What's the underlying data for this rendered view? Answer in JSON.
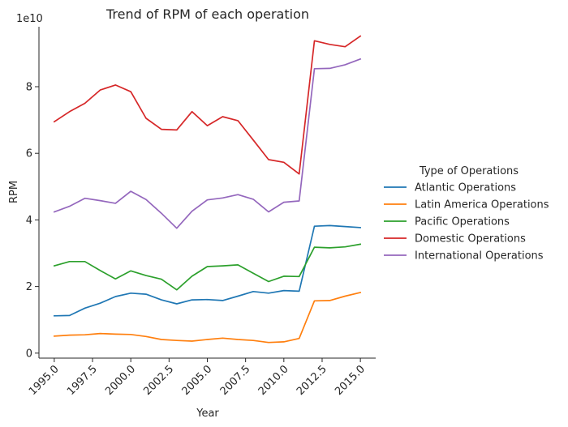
{
  "chart_data": {
    "type": "line",
    "title": "Trend of RPM of each operation",
    "xlabel": "Year",
    "ylabel": "RPM",
    "y_offset_label": "1e10",
    "x": [
      1995,
      1996,
      1997,
      1998,
      1999,
      2000,
      2001,
      2002,
      2003,
      2004,
      2005,
      2006,
      2007,
      2008,
      2009,
      2010,
      2011,
      2012,
      2013,
      2014,
      2015
    ],
    "xlim": [
      1994,
      2016
    ],
    "ylim": [
      -0.15,
      9.8
    ],
    "x_ticks": [
      1995.0,
      1997.5,
      2000.0,
      2002.5,
      2005.0,
      2007.5,
      2010.0,
      2012.5,
      2015.0
    ],
    "x_tick_labels": [
      "1995.0",
      "1997.5",
      "2000.0",
      "2002.5",
      "2005.0",
      "2007.5",
      "2010.0",
      "2012.5",
      "2015.0"
    ],
    "y_ticks": [
      0,
      2,
      4,
      6,
      8
    ],
    "y_tick_labels": [
      "0",
      "2",
      "4",
      "6",
      "8"
    ],
    "grid": false,
    "legend": {
      "title": "Type of Operations",
      "placement": "right-outside"
    },
    "series": [
      {
        "name": "Atlantic Operations",
        "color": "#1f77b4",
        "values": [
          1.12,
          1.13,
          1.35,
          1.5,
          1.7,
          1.8,
          1.77,
          1.6,
          1.48,
          1.6,
          1.61,
          1.58,
          1.71,
          1.85,
          1.8,
          1.88,
          1.86,
          3.81,
          3.83,
          3.8,
          3.77
        ]
      },
      {
        "name": "Latin America Operations",
        "color": "#ff7f0e",
        "values": [
          0.51,
          0.54,
          0.55,
          0.59,
          0.57,
          0.56,
          0.5,
          0.41,
          0.38,
          0.36,
          0.41,
          0.45,
          0.41,
          0.38,
          0.32,
          0.34,
          0.44,
          1.57,
          1.58,
          1.71,
          1.82
        ]
      },
      {
        "name": "Pacific Operations",
        "color": "#2ca02c",
        "values": [
          2.62,
          2.75,
          2.75,
          2.48,
          2.23,
          2.47,
          2.33,
          2.22,
          1.9,
          2.31,
          2.6,
          2.62,
          2.65,
          2.4,
          2.15,
          2.31,
          2.3,
          3.18,
          3.16,
          3.19,
          3.27
        ]
      },
      {
        "name": "Domestic Operations",
        "color": "#d62728",
        "values": [
          6.95,
          7.25,
          7.5,
          7.9,
          8.05,
          7.85,
          7.05,
          6.72,
          6.7,
          7.25,
          6.83,
          7.1,
          6.98,
          6.4,
          5.81,
          5.73,
          5.38,
          9.38,
          9.27,
          9.2,
          9.52
        ]
      },
      {
        "name": "International Operations",
        "color": "#9467bd",
        "values": [
          4.24,
          4.41,
          4.65,
          4.58,
          4.5,
          4.86,
          4.61,
          4.2,
          3.75,
          4.26,
          4.6,
          4.66,
          4.76,
          4.62,
          4.24,
          4.53,
          4.57,
          8.54,
          8.55,
          8.66,
          8.83
        ]
      }
    ]
  }
}
